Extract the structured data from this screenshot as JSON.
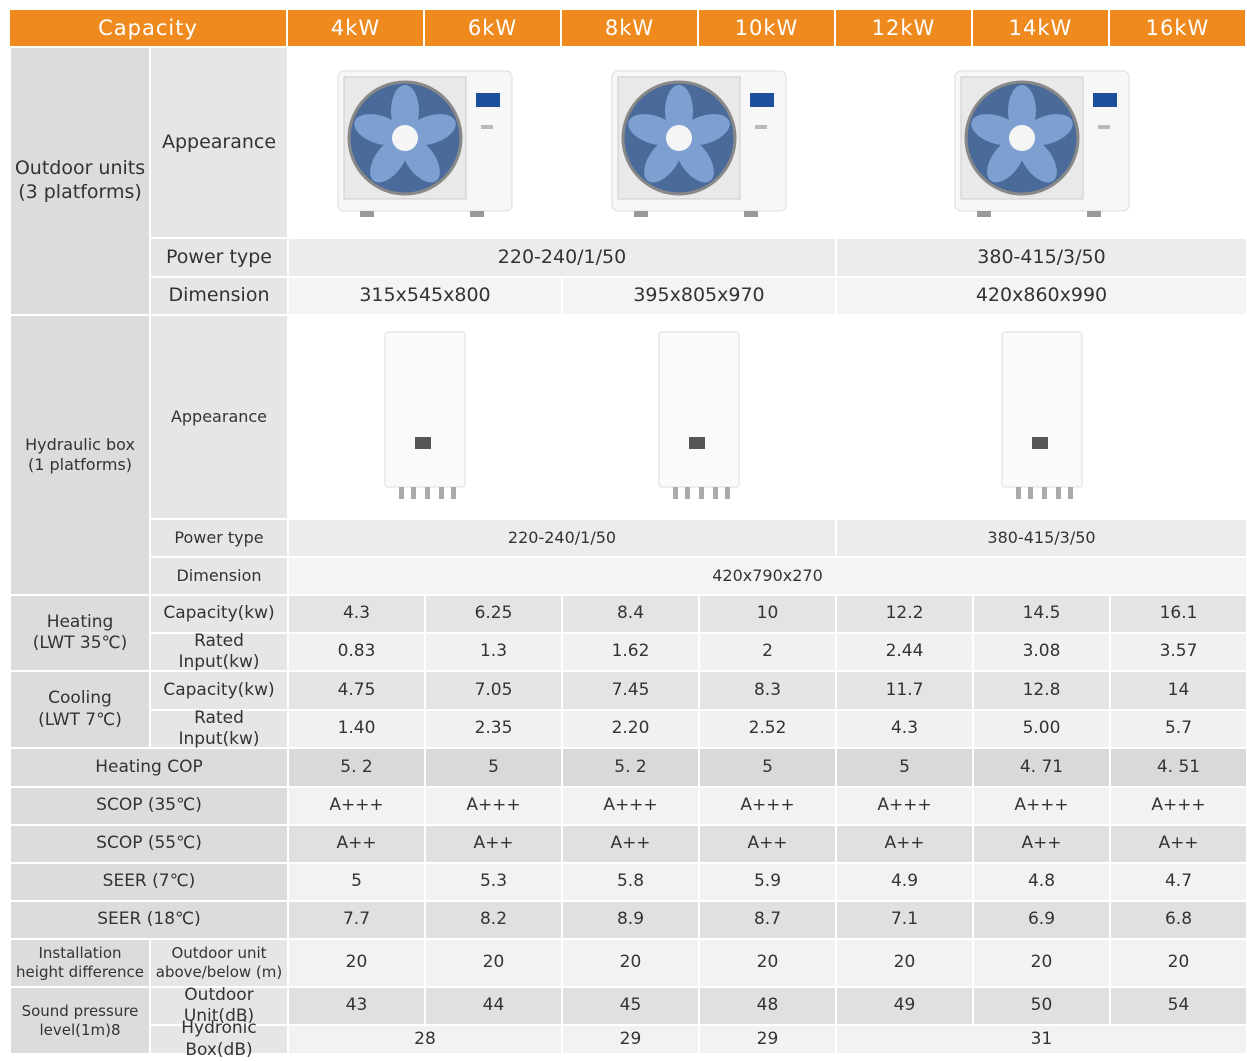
{
  "header": [
    "Capacity",
    "4kW",
    "6kW",
    "8kW",
    "10kW",
    "12kW",
    "14kW",
    "16kW"
  ],
  "sections": [
    {
      "label": [
        "Outdoor units",
        "(3 platforms)"
      ],
      "rows": [
        {
          "label": "Appearance"
        },
        {
          "label": "Power type",
          "values": [
            "220-240/1/50",
            "380-415/3/50"
          ]
        },
        {
          "label": "Dimension",
          "values": [
            "315x545x800",
            "395x805x970",
            "420x860x990"
          ]
        }
      ]
    },
    {
      "label": [
        "Hydraulic box",
        "(1 platforms)"
      ],
      "rows": [
        {
          "label": "Appearance"
        },
        {
          "label": "Power type",
          "values": [
            "220-240/1/50",
            "380-415/3/50"
          ]
        },
        {
          "label": "Dimension",
          "values": [
            "420x790x270"
          ]
        }
      ]
    },
    {
      "label": [
        "Heating",
        "(LWT 35℃)"
      ],
      "rows": [
        {
          "label": "Capacity(kw)",
          "values": [
            "4.3",
            "6.25",
            "8.4",
            "10",
            "12.2",
            "14.5",
            "16.1"
          ]
        },
        {
          "label": "Rated Input(kw)",
          "values": [
            "0.83",
            "1.3",
            "1.62",
            "2",
            "2.44",
            "3.08",
            "3.57"
          ]
        }
      ]
    },
    {
      "label": [
        "Cooling",
        "(LWT 7℃)"
      ],
      "rows": [
        {
          "label": "Capacity(kw)",
          "values": [
            "4.75",
            "7.05",
            "7.45",
            "8.3",
            "11.7",
            "12.8",
            "14"
          ]
        },
        {
          "label": "Rated Input(kw)",
          "values": [
            "1.40",
            "2.35",
            "2.20",
            "2.52",
            "4.3",
            "5.00",
            "5.7"
          ]
        }
      ]
    },
    {
      "label": [
        "Heating COP"
      ],
      "rows": [
        {
          "values": [
            "5. 2",
            "5",
            "5. 2",
            "5",
            "5",
            "4. 71",
            "4. 51"
          ]
        }
      ]
    },
    {
      "label": [
        "SCOP (35℃)"
      ],
      "rows": [
        {
          "values": [
            "A+++",
            "A+++",
            "A+++",
            "A+++",
            "A+++",
            "A+++",
            "A+++"
          ]
        }
      ]
    },
    {
      "label": [
        "SCOP (55℃)"
      ],
      "rows": [
        {
          "values": [
            "A++",
            "A++",
            "A++",
            "A++",
            "A++",
            "A++",
            "A++"
          ]
        }
      ]
    },
    {
      "label": [
        "SEER (7℃)"
      ],
      "rows": [
        {
          "values": [
            "5",
            "5.3",
            "5.8",
            "5.9",
            "4.9",
            "4.8",
            "4.7"
          ]
        }
      ]
    },
    {
      "label": [
        "SEER (18℃)"
      ],
      "rows": [
        {
          "values": [
            "7.7",
            "8.2",
            "8.9",
            "8.7",
            "7.1",
            "6.9",
            "6.8"
          ]
        }
      ]
    },
    {
      "label": [
        "Installation",
        "height difference"
      ],
      "rows": [
        {
          "label": [
            "Outdoor unit",
            "above/below (m)"
          ],
          "values": [
            "20",
            "20",
            "20",
            "20",
            "20",
            "20",
            "20"
          ]
        }
      ]
    },
    {
      "label": [
        "Sound pressure",
        "level(1m)8"
      ],
      "rows": [
        {
          "label": "Outdoor Unit(dB)",
          "values": [
            "43",
            "44",
            "45",
            "48",
            "49",
            "50",
            "54"
          ]
        },
        {
          "label": "Hydronic Box(dB)",
          "values": [
            "28",
            "29",
            "29",
            "31"
          ]
        }
      ]
    }
  ]
}
